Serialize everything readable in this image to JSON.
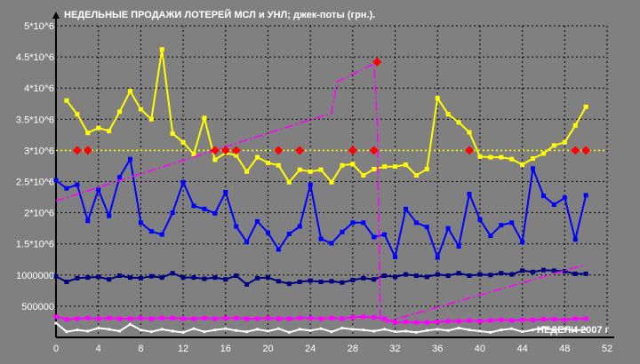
{
  "chart_data": {
    "type": "line",
    "title": "НЕДЕЛЬНЫЕ ПРОДАЖИ ЛОТЕРЕЙ МСЛ и УНЛ; джек-поты (грн.).",
    "xlabel": "НЕДЕЛИ 2007 г",
    "ylabel": "",
    "xlim": [
      0,
      52
    ],
    "ylim": [
      0,
      5000000
    ],
    "x_ticks": [
      0,
      4,
      8,
      12,
      16,
      20,
      24,
      28,
      32,
      36,
      40,
      44,
      48,
      52
    ],
    "y_ticks": [
      500000,
      1000000,
      1500000,
      2000000,
      2500000,
      3000000,
      3500000,
      4000000,
      4500000,
      5000000
    ],
    "y_tick_labels": [
      "500000",
      "1000000",
      "1.5*10^6",
      "2*10^6",
      "2.5*10^6",
      "3*10^6",
      "3.5*10^6",
      "4*10^6",
      "4.5*10^6",
      "5*10^6"
    ],
    "grid": true,
    "colors": {
      "background": "#808080",
      "grid": "#000000",
      "yellow": "#ffff00",
      "blue": "#0000ff",
      "navy": "#000080",
      "magenta": "#ff00ff",
      "white": "#ffffff",
      "red": "#ff0000"
    },
    "series": [
      {
        "color": "#ffff00",
        "marker": "square",
        "x": [
          1,
          2,
          3,
          4,
          5,
          6,
          7,
          8,
          9,
          10,
          11,
          12,
          13,
          14,
          15,
          16,
          17,
          18,
          19,
          20,
          21,
          22,
          23,
          24,
          25,
          26,
          27,
          28,
          29,
          30,
          31,
          32,
          33,
          34,
          35,
          36,
          37,
          38,
          39,
          40,
          41,
          42,
          43,
          44,
          45,
          46,
          47,
          48,
          49,
          50
        ],
        "y": [
          3800000,
          3580000,
          3280000,
          3360000,
          3310000,
          3620000,
          3950000,
          3660000,
          3500000,
          4620000,
          3270000,
          3130000,
          2940000,
          3520000,
          2850000,
          2960000,
          2920000,
          2660000,
          2890000,
          2800000,
          2760000,
          2490000,
          2690000,
          2660000,
          2690000,
          2490000,
          2760000,
          2780000,
          2600000,
          2700000,
          2740000,
          2740000,
          2770000,
          2600000,
          2700000,
          3840000,
          3580000,
          3450000,
          3290000,
          2900000,
          2890000,
          2890000,
          2860000,
          2770000,
          2870000,
          2950000,
          3080000,
          3130000,
          3400000,
          3700000
        ]
      },
      {
        "color": "#0000ff",
        "marker": "square",
        "x": [
          0,
          1,
          2,
          3,
          4,
          5,
          6,
          7,
          8,
          9,
          10,
          11,
          12,
          13,
          14,
          15,
          16,
          17,
          18,
          19,
          20,
          21,
          22,
          23,
          24,
          25,
          26,
          27,
          28,
          29,
          30,
          31,
          32,
          33,
          34,
          35,
          36,
          37,
          38,
          39,
          40,
          41,
          42,
          43,
          44,
          45,
          46,
          47,
          48,
          49,
          50
        ],
        "y": [
          2520000,
          2390000,
          2450000,
          1870000,
          2370000,
          1950000,
          2570000,
          2860000,
          1840000,
          1700000,
          1650000,
          2000000,
          2490000,
          2110000,
          2060000,
          1990000,
          2330000,
          1780000,
          1530000,
          1860000,
          1680000,
          1410000,
          1660000,
          1780000,
          2450000,
          1580000,
          1510000,
          1690000,
          1840000,
          1840000,
          1610000,
          1650000,
          1290000,
          2060000,
          1840000,
          1770000,
          1280000,
          1750000,
          1460000,
          2300000,
          1890000,
          1630000,
          1800000,
          1840000,
          1530000,
          2710000,
          2270000,
          2130000,
          2240000,
          1570000,
          2280000
        ]
      },
      {
        "color": "#000080",
        "marker": "square",
        "x": [
          0,
          1,
          2,
          3,
          4,
          5,
          6,
          7,
          8,
          9,
          10,
          11,
          12,
          13,
          14,
          15,
          16,
          17,
          18,
          19,
          20,
          21,
          22,
          23,
          24,
          25,
          26,
          27,
          28,
          29,
          30,
          31,
          32,
          33,
          34,
          35,
          36,
          37,
          38,
          39,
          40,
          41,
          42,
          43,
          44,
          45,
          46,
          47,
          48,
          49,
          50
        ],
        "y": [
          980000,
          890000,
          950000,
          960000,
          970000,
          930000,
          990000,
          960000,
          950000,
          980000,
          960000,
          1030000,
          960000,
          960000,
          940000,
          960000,
          930000,
          990000,
          850000,
          950000,
          960000,
          900000,
          860000,
          890000,
          910000,
          890000,
          900000,
          880000,
          920000,
          950000,
          930000,
          990000,
          970000,
          1010000,
          990000,
          970000,
          1010000,
          990000,
          1030000,
          990000,
          1010000,
          1000000,
          1030000,
          1010000,
          1070000,
          1050000,
          1080000,
          1070000,
          1060000,
          1020000,
          1020000
        ]
      },
      {
        "color": "#ff00ff",
        "marker": "square",
        "x": [
          0,
          1,
          2,
          3,
          4,
          5,
          6,
          7,
          8,
          9,
          10,
          11,
          12,
          13,
          14,
          15,
          16,
          17,
          18,
          19,
          20,
          21,
          22,
          23,
          24,
          25,
          26,
          27,
          28,
          29,
          30,
          31,
          32,
          33,
          34,
          35,
          36,
          37,
          38,
          39,
          40,
          41,
          42,
          43,
          44,
          45,
          46,
          47,
          48,
          49,
          50
        ],
        "y": [
          330000,
          290000,
          300000,
          310000,
          300000,
          310000,
          300000,
          300000,
          310000,
          300000,
          310000,
          310000,
          300000,
          300000,
          310000,
          300000,
          310000,
          310000,
          300000,
          300000,
          310000,
          300000,
          300000,
          310000,
          310000,
          300000,
          310000,
          300000,
          320000,
          330000,
          320000,
          300000,
          240000,
          250000,
          240000,
          240000,
          250000,
          260000,
          260000,
          270000,
          260000,
          270000,
          280000,
          270000,
          280000,
          280000,
          290000,
          290000,
          280000,
          300000,
          300000
        ]
      },
      {
        "color": "#ffffff",
        "marker": "dot",
        "x": [
          0,
          1,
          2,
          3,
          4,
          5,
          6,
          7,
          8,
          9,
          10,
          11,
          12,
          13,
          14,
          15,
          16,
          17,
          18,
          19,
          20,
          21,
          22,
          23,
          24,
          25,
          26,
          27,
          28,
          29,
          30,
          31,
          32,
          33,
          34,
          35,
          36,
          37,
          38,
          39,
          40,
          41,
          42,
          43,
          44,
          45,
          46,
          47,
          48,
          49,
          50
        ],
        "y": [
          230000,
          90000,
          120000,
          100000,
          150000,
          130000,
          100000,
          210000,
          120000,
          90000,
          130000,
          100000,
          80000,
          140000,
          90000,
          120000,
          140000,
          110000,
          90000,
          130000,
          100000,
          140000,
          80000,
          130000,
          110000,
          140000,
          90000,
          150000,
          130000,
          120000,
          100000,
          130000,
          90000,
          100000,
          80000,
          110000,
          130000,
          110000,
          150000,
          120000,
          100000,
          80000,
          120000,
          140000,
          90000,
          120000,
          160000,
          120000,
          140000,
          110000,
          130000
        ]
      },
      {
        "color": "#ff00ff",
        "style": "dash-dot",
        "x": [
          0,
          26,
          26.5,
          30,
          30.3,
          30.6,
          31,
          50
        ],
        "y": [
          2190000,
          3600000,
          4100000,
          4390000,
          3500000,
          300000,
          240000,
          1170000
        ]
      },
      {
        "color": "#ffff00",
        "style": "dotted",
        "x": [
          0,
          52
        ],
        "y": [
          3000000,
          3000000
        ]
      },
      {
        "color": "#ff0000",
        "marker": "diamond",
        "style": "none",
        "x": [
          2,
          3,
          15,
          16,
          17,
          21,
          23,
          28,
          30,
          39,
          49,
          50
        ],
        "y": [
          3000000,
          3000000,
          3000000,
          3000000,
          3000000,
          3000000,
          3000000,
          3000000,
          3000000,
          3000000,
          3000000,
          3000000
        ]
      },
      {
        "color": "#ff0000",
        "marker": "diamond",
        "style": "none",
        "x": [
          30.3
        ],
        "y": [
          4420000
        ]
      }
    ]
  }
}
